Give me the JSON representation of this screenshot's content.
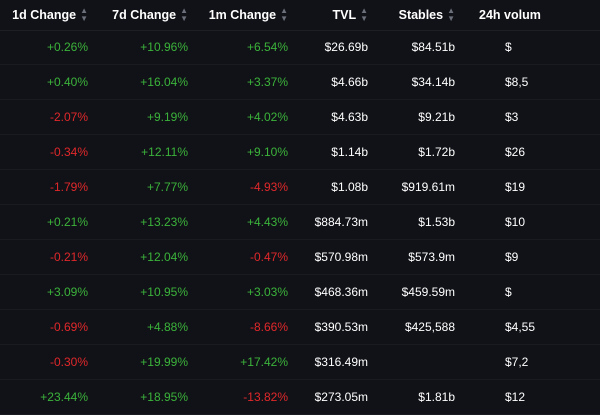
{
  "columns": [
    {
      "label": "1d Change"
    },
    {
      "label": "7d Change"
    },
    {
      "label": "1m Change"
    },
    {
      "label": "TVL"
    },
    {
      "label": "Stables"
    },
    {
      "label": "24h volum"
    }
  ],
  "colors": {
    "positive": "#3bb33b",
    "negative": "#e0282b",
    "text": "#ffffff",
    "background": "#111217"
  },
  "rows": [
    {
      "d1": "+0.26%",
      "d7": "+10.96%",
      "m1": "+6.54%",
      "tvl": "$26.69b",
      "stables": "$84.51b",
      "vol": "$"
    },
    {
      "d1": "+0.40%",
      "d7": "+16.04%",
      "m1": "+3.37%",
      "tvl": "$4.66b",
      "stables": "$34.14b",
      "vol": "$8,5"
    },
    {
      "d1": "-2.07%",
      "d7": "+9.19%",
      "m1": "+4.02%",
      "tvl": "$4.63b",
      "stables": "$9.21b",
      "vol": "$3"
    },
    {
      "d1": "-0.34%",
      "d7": "+12.11%",
      "m1": "+9.10%",
      "tvl": "$1.14b",
      "stables": "$1.72b",
      "vol": "$26"
    },
    {
      "d1": "-1.79%",
      "d7": "+7.77%",
      "m1": "-4.93%",
      "tvl": "$1.08b",
      "stables": "$919.61m",
      "vol": "$19"
    },
    {
      "d1": "+0.21%",
      "d7": "+13.23%",
      "m1": "+4.43%",
      "tvl": "$884.73m",
      "stables": "$1.53b",
      "vol": "$10"
    },
    {
      "d1": "-0.21%",
      "d7": "+12.04%",
      "m1": "-0.47%",
      "tvl": "$570.98m",
      "stables": "$573.9m",
      "vol": "$9"
    },
    {
      "d1": "+3.09%",
      "d7": "+10.95%",
      "m1": "+3.03%",
      "tvl": "$468.36m",
      "stables": "$459.59m",
      "vol": "$"
    },
    {
      "d1": "-0.69%",
      "d7": "+4.88%",
      "m1": "-8.66%",
      "tvl": "$390.53m",
      "stables": "$425,588",
      "vol": "$4,55"
    },
    {
      "d1": "-0.30%",
      "d7": "+19.99%",
      "m1": "+17.42%",
      "tvl": "$316.49m",
      "stables": "",
      "vol": "$7,2"
    },
    {
      "d1": "+23.44%",
      "d7": "+18.95%",
      "m1": "-13.82%",
      "tvl": "$273.05m",
      "stables": "$1.81b",
      "vol": "$12"
    }
  ]
}
